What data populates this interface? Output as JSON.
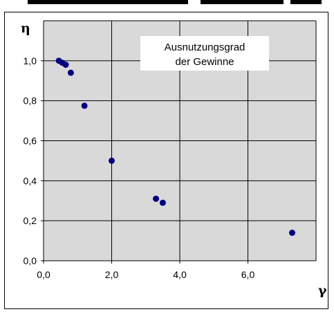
{
  "chart_data": {
    "type": "scatter",
    "title": "",
    "xlabel": "γ",
    "ylabel": "η",
    "xlim": [
      0,
      8
    ],
    "ylim": [
      0,
      1.2
    ],
    "x_ticks": [
      "0,0",
      "2,0",
      "4,0",
      "6,0"
    ],
    "y_ticks": [
      "0,0",
      "0,2",
      "0,4",
      "0,6",
      "0,8",
      "1,0"
    ],
    "grid": true,
    "annotation": [
      "Ausnutzungsgrad",
      "der Gewinne"
    ],
    "series": [
      {
        "x": [
          0.45,
          0.55,
          0.65,
          0.8,
          1.2,
          2.0,
          3.3,
          3.5,
          7.3
        ],
        "y": [
          1.0,
          0.99,
          0.98,
          0.94,
          0.775,
          0.5,
          0.31,
          0.29,
          0.14
        ]
      }
    ],
    "colors": {
      "point": "#00007F",
      "plot_background": "#D9D9D9",
      "grid": "#000000"
    }
  }
}
